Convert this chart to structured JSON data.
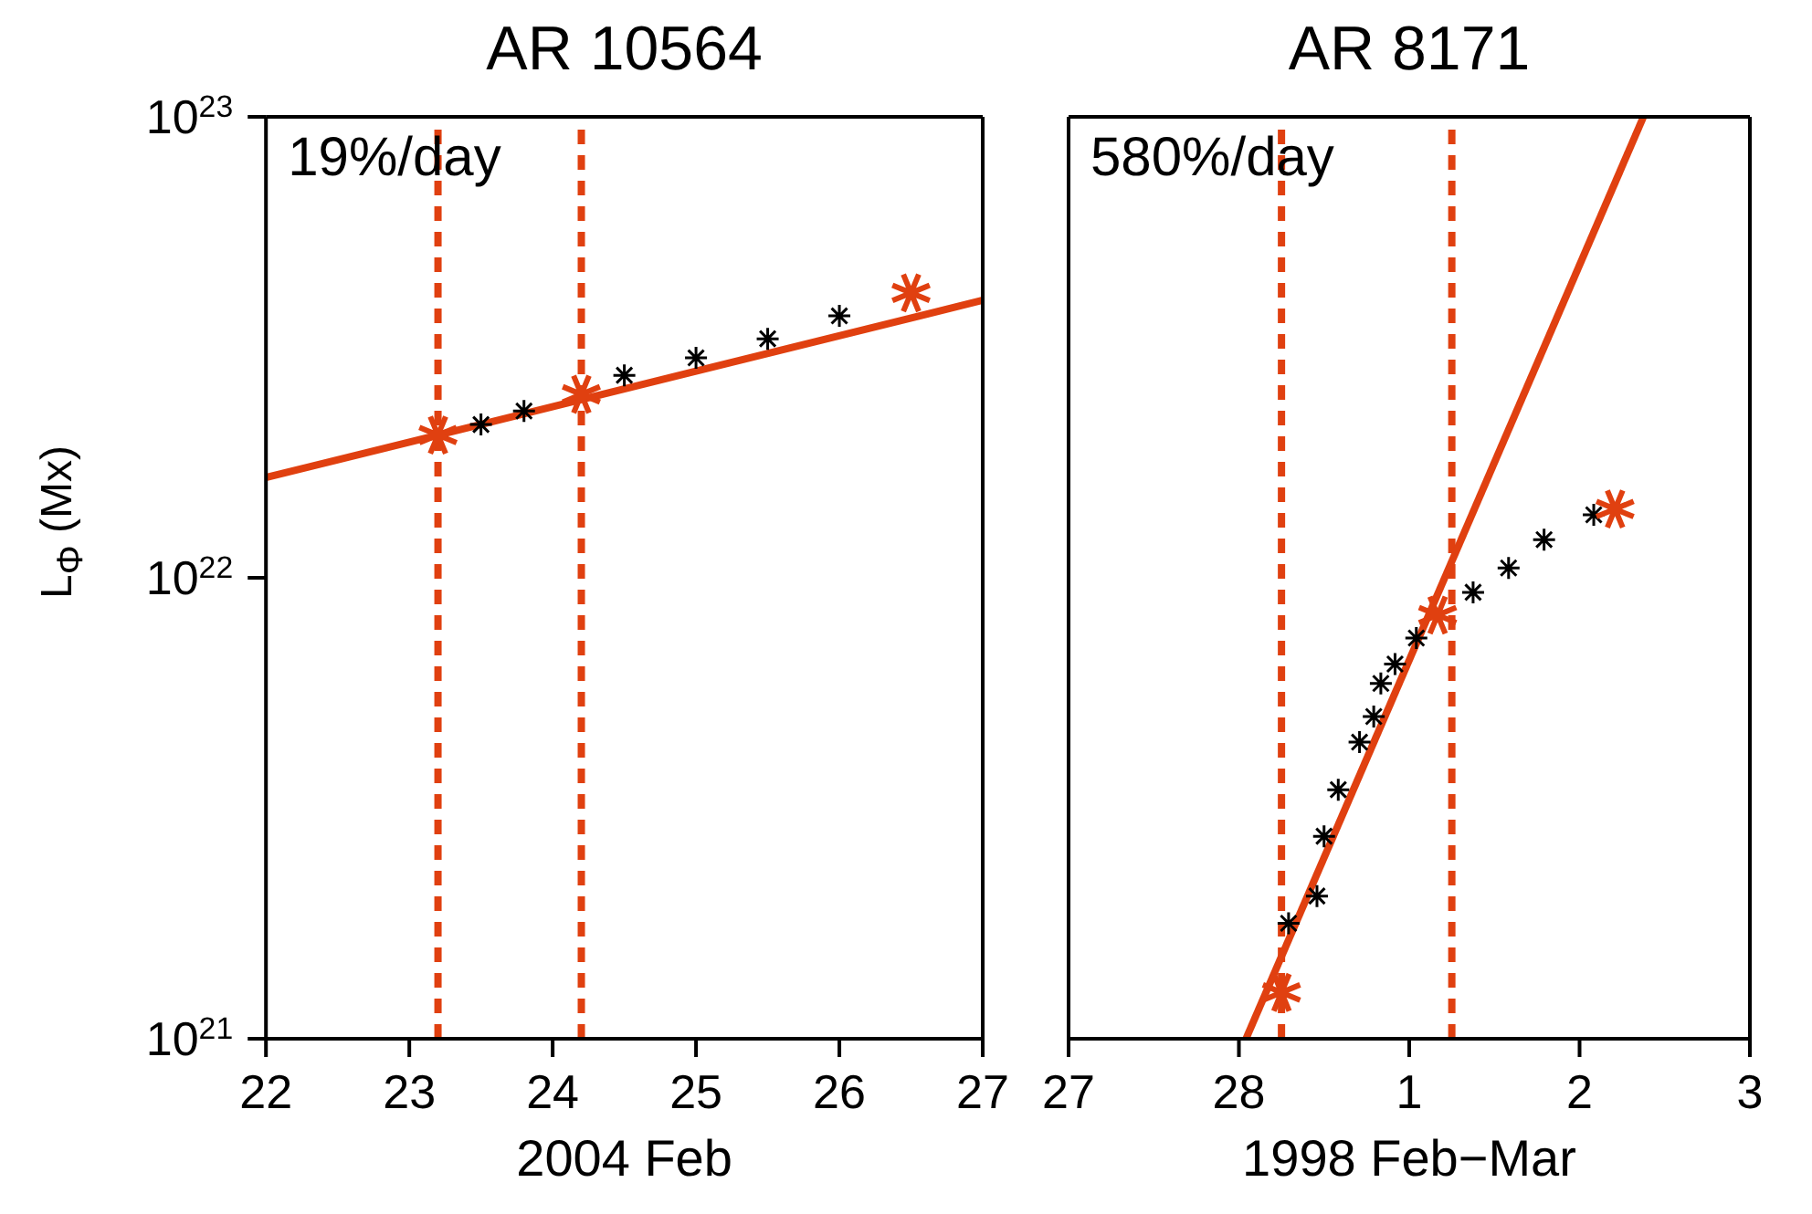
{
  "chart_data": [
    {
      "type": "scatter",
      "title": "AR 10564",
      "xlabel": "2004 Feb",
      "ylabel": "L$_{Φ}$ (Mx)",
      "log": "y",
      "grid": false,
      "legend": false,
      "annotations": [
        "19%/day"
      ],
      "xlim": [
        22,
        27
      ],
      "xticks": [
        22,
        23,
        24,
        25,
        26,
        27
      ],
      "ylim": [
        1e+21,
        1e+23
      ],
      "yticks": [
        {
          "value": 1e+21,
          "label": "10$^{21}$"
        },
        {
          "value": 1e+22,
          "label": "10$^{22}$"
        },
        {
          "value": 1e+23,
          "label": "10$^{23}$"
        }
      ],
      "ref_lines": [
        {
          "axis": "x",
          "value": 23.2,
          "color": "#e04010",
          "line_style": "dashed"
        },
        {
          "axis": "x",
          "value": 24.2,
          "color": "#e04010",
          "line_style": "dashed"
        }
      ],
      "series": [
        {
          "type": "scatter",
          "color": "#000000",
          "marker": "cross",
          "x": [
            23.5,
            23.8,
            24.5,
            25,
            25.5,
            26
          ],
          "values": [
            2.15e+22,
            2.3e+22,
            2.75e+22,
            3e+22,
            3.3e+22,
            3.7e+22
          ]
        },
        {
          "type": "line",
          "color": "#e04010",
          "marker": "none",
          "line_style": "solid",
          "x": [
            22,
            27
          ],
          "values": [
            1.65e+22,
            4e+22
          ]
        },
        {
          "type": "scatter",
          "color": "#e04010",
          "marker": "cross",
          "x": [
            23.2,
            24.2,
            26.5
          ],
          "values": [
            2.04e+22,
            2.5e+22,
            4.15e+22
          ]
        }
      ]
    },
    {
      "type": "scatter",
      "title": "AR 8171",
      "xlabel": "1998 Feb−Mar",
      "log": "y",
      "grid": false,
      "legend": false,
      "tick_labels": "x",
      "annotations": [
        "580%/day"
      ],
      "xlim": [
        "1998-02-27",
        "1998-03-03"
      ],
      "xticks": [
        {
          "value": "1998-02-27",
          "label": "27"
        },
        {
          "value": "1998-02-28",
          "label": "28"
        },
        {
          "value": "1998-03-01",
          "label": "1"
        },
        {
          "value": "1998-03-02",
          "label": "2"
        },
        {
          "value": "1998-03-03",
          "label": "3"
        }
      ],
      "ylim": [
        1e+21,
        1e+23
      ],
      "yticks": [
        {
          "value": 1e+21,
          "label": null
        },
        {
          "value": 1e+22,
          "label": null
        },
        {
          "value": 1e+23,
          "label": null
        }
      ],
      "ref_lines": [
        {
          "axis": "x",
          "value": "1998-02-28T06:00",
          "color": "#e04010",
          "line_style": "dashed"
        },
        {
          "axis": "x",
          "value": "1998-03-01T06:00",
          "color": "#e04010",
          "line_style": "dashed"
        }
      ],
      "series": [
        {
          "type": "scatter",
          "color": "#000000",
          "marker": "cross",
          "x": [
            "1998-02-28T07:00",
            "1998-02-28T11:00",
            "1998-02-28T12:00",
            "1998-02-28T14:00",
            "1998-02-28T17:00",
            "1998-02-28T19:00",
            "1998-02-28T20:00",
            "1998-02-28T22:00",
            "1998-03-01T01:00",
            "1998-03-01T09:00",
            "1998-03-01T14:00",
            "1998-03-01T19:00",
            "1998-03-02T02:00"
          ],
          "values": [
            1.78e+21,
            2.04e+21,
            2.75e+21,
            3.47e+21,
            4.4e+21,
            5e+21,
            5.9e+21,
            6.5e+21,
            7.4e+21,
            9.3e+21,
            1.05e+22,
            1.21e+22,
            1.37e+22
          ]
        },
        {
          "type": "line",
          "color": "#e04010",
          "marker": "none",
          "line_style": "solid",
          "x": [
            "1998-02-28T01:00",
            "1998-03-02T09:00"
          ],
          "values": [
            1e+21,
            1e+23
          ]
        },
        {
          "type": "scatter",
          "color": "#e04010",
          "marker": "cross",
          "x": [
            "1998-02-28T06:00",
            "1998-03-01T04:00",
            "1998-03-02T05:00"
          ],
          "values": [
            1.26e+21,
            8.3e+21,
            1.41e+22
          ]
        }
      ]
    }
  ]
}
